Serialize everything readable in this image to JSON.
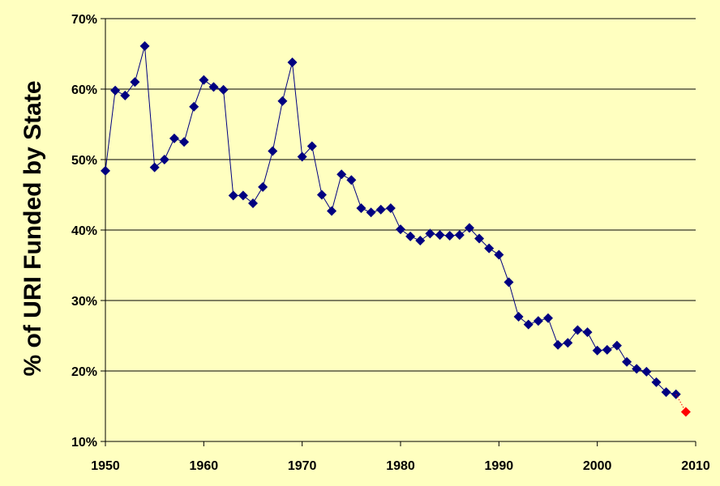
{
  "chart_data": {
    "type": "line",
    "title": "",
    "xlabel": "",
    "ylabel": "% of URI Funded by State",
    "xlim": [
      1950,
      2010
    ],
    "ylim": [
      10,
      70
    ],
    "x_ticks": [
      1950,
      1960,
      1970,
      1980,
      1990,
      2000,
      2010
    ],
    "x_tick_labels": [
      "1950",
      "1960",
      "1970",
      "1980",
      "1990",
      "2000",
      "2010"
    ],
    "y_ticks": [
      10,
      20,
      30,
      40,
      50,
      60,
      70
    ],
    "y_tick_labels": [
      "10%",
      "20%",
      "30%",
      "40%",
      "50%",
      "60%",
      "70%"
    ],
    "grid": "horizontal",
    "legend": "none",
    "colors": {
      "background": "#ffffc0",
      "series": "#000080",
      "projection": "#ff0000",
      "gridline": "#000000"
    },
    "series": [
      {
        "x": [
          1950,
          1951,
          1952,
          1953,
          1954,
          1955,
          1956,
          1957,
          1958,
          1959,
          1960,
          1961,
          1962,
          1963,
          1964,
          1965,
          1966,
          1967,
          1968,
          1969,
          1970,
          1971,
          1972,
          1973,
          1974,
          1975,
          1976,
          1977,
          1978,
          1979,
          1980,
          1981,
          1982,
          1983,
          1984,
          1985,
          1986,
          1987,
          1988,
          1989,
          1990,
          1991,
          1992,
          1993,
          1994,
          1995,
          1996,
          1997,
          1998,
          1999,
          2000,
          2001,
          2002,
          2003,
          2004,
          2005,
          2006,
          2007,
          2008
        ],
        "values": [
          48.4,
          59.8,
          59.1,
          61.0,
          66.1,
          48.9,
          50.0,
          53.0,
          52.5,
          57.5,
          61.3,
          60.3,
          59.9,
          44.9,
          44.9,
          43.8,
          46.1,
          51.2,
          58.3,
          63.8,
          50.4,
          51.9,
          45.0,
          42.7,
          47.9,
          47.1,
          43.1,
          42.5,
          42.9,
          43.1,
          40.1,
          39.1,
          38.5,
          39.5,
          39.3,
          39.2,
          39.3,
          40.3,
          38.8,
          37.4,
          36.5,
          32.6,
          27.7,
          26.6,
          27.1,
          27.5,
          23.7,
          24.0,
          25.8,
          25.5,
          22.9,
          23.0,
          23.6,
          21.3,
          20.3,
          19.9,
          18.4,
          17.0,
          16.7
        ],
        "color": "#000080",
        "marker": "diamond"
      },
      {
        "x": [
          2008,
          2009
        ],
        "values": [
          16.7,
          14.2
        ],
        "color": "#ff0000",
        "marker": "diamond",
        "line_style": "dotted"
      }
    ]
  }
}
